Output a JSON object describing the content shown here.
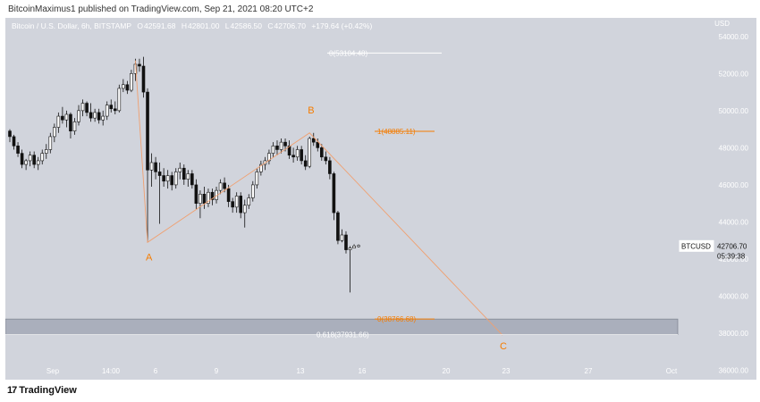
{
  "header": {
    "publisher_text": "BitcoinMaximus1 published on TradingView.com, Sep 21, 2021 08:20 UTC+2"
  },
  "legend": {
    "symbol_text": "Bitcoin / U.S. Dollar, 6h, BITSTAMP",
    "o_label": "O",
    "o_value": "42591.68",
    "h_label": "H",
    "h_value": "42801.00",
    "l_label": "L",
    "l_value": "42586.50",
    "c_label": "C",
    "c_value": "42706.70",
    "change": "+179.64 (+0.42%)"
  },
  "price_tag": {
    "symbol": "BTCUSD",
    "price": "42706.70",
    "countdown": "05:39:38"
  },
  "footer": {
    "brand": "TradingView",
    "logo_mark": "17"
  },
  "colors": {
    "background": "#d1d4dc",
    "up_candle": "#ffffff",
    "down_candle": "#111111",
    "fib_white": "#ffffff",
    "fib_orange": "#f57c00",
    "wave_line": "#f0a070",
    "support_zone": "#9aa0ae"
  },
  "chart_data": {
    "type": "candlestick",
    "title": "Bitcoin / U.S. Dollar, 6h, BITSTAMP",
    "y_axis_label": "USD",
    "y_range": [
      35500,
      55000
    ],
    "y_ticks": [
      "54000.00",
      "52000.00",
      "50000.00",
      "48000.00",
      "46000.00",
      "44000.00",
      "42000.00",
      "40000.00",
      "38000.00",
      "36000.00"
    ],
    "x_ticks": [
      "Sep",
      "14:00",
      "6",
      "9",
      "13",
      "16",
      "20",
      "23",
      "27",
      "Oct"
    ],
    "fib_levels": [
      {
        "label": "0(53104.48)",
        "price": 53104.48,
        "color": "white"
      },
      {
        "label": "1(48885.11)",
        "price": 48885.11,
        "color": "orange"
      },
      {
        "label": "0(38766.68)",
        "price": 38766.68,
        "color": "orange"
      },
      {
        "label": "0.618(37931.66)",
        "price": 37931.66,
        "color": "white"
      }
    ],
    "wave_labels": [
      "A",
      "B",
      "C"
    ],
    "wave_points": [
      {
        "label": "",
        "price": 52700
      },
      {
        "label": "A",
        "price": 42900
      },
      {
        "label": "B",
        "price": 48800
      },
      {
        "label": "C",
        "price": 37900
      }
    ],
    "support_zone": [
      37931.66,
      38766.68
    ],
    "candles": [
      [
        48900,
        49000,
        48300,
        48600
      ],
      [
        48600,
        48700,
        47900,
        48100
      ],
      [
        48100,
        48300,
        47500,
        47700
      ],
      [
        47700,
        47900,
        46900,
        47100
      ],
      [
        47100,
        47400,
        46800,
        47300
      ],
      [
        47300,
        47800,
        47000,
        47600
      ],
      [
        47600,
        47800,
        46900,
        47100
      ],
      [
        47100,
        47500,
        46800,
        47300
      ],
      [
        47300,
        47900,
        47100,
        47700
      ],
      [
        47700,
        48200,
        47400,
        47900
      ],
      [
        47900,
        48800,
        47700,
        48600
      ],
      [
        48600,
        49300,
        48300,
        49100
      ],
      [
        49100,
        49900,
        48800,
        49700
      ],
      [
        49700,
        50200,
        49300,
        49500
      ],
      [
        49500,
        50000,
        49100,
        49800
      ],
      [
        49800,
        49900,
        48500,
        48900
      ],
      [
        48900,
        49600,
        48700,
        49400
      ],
      [
        49400,
        50300,
        49200,
        50000
      ],
      [
        50000,
        50600,
        49700,
        50400
      ],
      [
        50400,
        50500,
        49700,
        49900
      ],
      [
        49900,
        50400,
        49400,
        49600
      ],
      [
        49600,
        50100,
        49400,
        49900
      ],
      [
        49900,
        50100,
        49300,
        49500
      ],
      [
        49500,
        50000,
        49200,
        49700
      ],
      [
        49700,
        50500,
        49500,
        50300
      ],
      [
        50300,
        50600,
        49900,
        50100
      ],
      [
        50100,
        50500,
        49800,
        50000
      ],
      [
        50000,
        51400,
        49900,
        51200
      ],
      [
        51200,
        51700,
        51000,
        51400
      ],
      [
        51400,
        51600,
        50900,
        51100
      ],
      [
        51100,
        52200,
        51000,
        52000
      ],
      [
        52000,
        52800,
        51600,
        52500
      ],
      [
        52500,
        52800,
        52100,
        52400
      ],
      [
        52400,
        52900,
        50700,
        51000
      ],
      [
        51000,
        51200,
        42900,
        46800
      ],
      [
        46800,
        47700,
        45900,
        47200
      ],
      [
        47200,
        47500,
        46300,
        46700
      ],
      [
        46700,
        47200,
        43900,
        46500
      ],
      [
        46500,
        46900,
        45900,
        46200
      ],
      [
        46200,
        46800,
        45800,
        46500
      ],
      [
        46500,
        46700,
        45700,
        46000
      ],
      [
        46000,
        46900,
        45800,
        46700
      ],
      [
        46700,
        47200,
        46300,
        46900
      ],
      [
        46900,
        47100,
        46000,
        46300
      ],
      [
        46300,
        46800,
        45900,
        46600
      ],
      [
        46600,
        46800,
        45800,
        46000
      ],
      [
        46000,
        46300,
        44700,
        45000
      ],
      [
        45000,
        45700,
        44200,
        45500
      ],
      [
        45500,
        45900,
        44700,
        45000
      ],
      [
        45000,
        45800,
        44800,
        45600
      ],
      [
        45600,
        45800,
        44900,
        45200
      ],
      [
        45200,
        45900,
        45000,
        45700
      ],
      [
        45700,
        46300,
        45500,
        46100
      ],
      [
        46100,
        46400,
        45600,
        45800
      ],
      [
        45800,
        46000,
        44800,
        45100
      ],
      [
        45100,
        45300,
        44500,
        44800
      ],
      [
        44800,
        45600,
        44500,
        45400
      ],
      [
        45400,
        45600,
        44200,
        44500
      ],
      [
        44500,
        45200,
        43700,
        44900
      ],
      [
        44900,
        45500,
        44700,
        45300
      ],
      [
        45300,
        46200,
        45100,
        46000
      ],
      [
        46000,
        46900,
        45800,
        46700
      ],
      [
        46700,
        47300,
        46500,
        47100
      ],
      [
        47100,
        47500,
        46800,
        47300
      ],
      [
        47300,
        47900,
        47100,
        47700
      ],
      [
        47700,
        48300,
        47500,
        48100
      ],
      [
        48100,
        48400,
        47600,
        47900
      ],
      [
        47900,
        48500,
        47700,
        48300
      ],
      [
        48300,
        48500,
        47800,
        48100
      ],
      [
        48100,
        48400,
        47400,
        47600
      ],
      [
        47600,
        48000,
        47200,
        47500
      ],
      [
        47500,
        48100,
        47300,
        47900
      ],
      [
        47900,
        48100,
        47100,
        47300
      ],
      [
        47300,
        47600,
        46800,
        47000
      ],
      [
        47000,
        48600,
        46900,
        48500
      ],
      [
        48500,
        48800,
        48100,
        48300
      ],
      [
        48300,
        48500,
        47800,
        48000
      ],
      [
        48000,
        48200,
        47300,
        47500
      ],
      [
        47500,
        47800,
        47100,
        47300
      ],
      [
        47300,
        47500,
        46300,
        46600
      ],
      [
        46600,
        46700,
        44100,
        44500
      ],
      [
        44500,
        44600,
        42800,
        43000
      ],
      [
        43000,
        43600,
        42900,
        43300
      ],
      [
        43300,
        43500,
        42300,
        42500
      ],
      [
        42500,
        42700,
        40200,
        42600
      ],
      [
        42591.68,
        42801.0,
        42586.5,
        42706.7
      ]
    ]
  }
}
